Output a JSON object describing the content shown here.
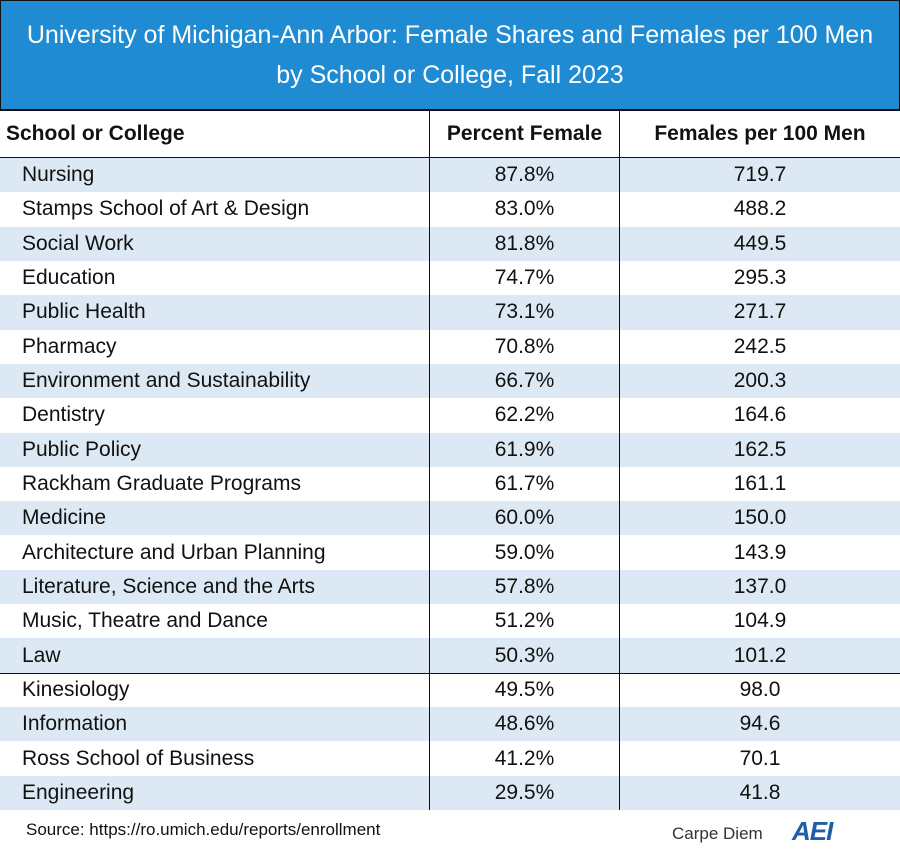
{
  "header": {
    "title": [
      "University of Michigan-Ann Arbor: Female Shares and Females per 100 Men",
      "by School or College, Fall 2023"
    ]
  },
  "table": {
    "columns": [
      "School or College",
      "Percent Female",
      "Females per 100 Men"
    ],
    "rows": [
      [
        "Nursing",
        "87.8%",
        "719.7"
      ],
      [
        "Stamps School of Art & Design",
        "83.0%",
        "488.2"
      ],
      [
        "Social Work",
        "81.8%",
        "449.5"
      ],
      [
        "Education",
        "74.7%",
        "295.3"
      ],
      [
        "Public Health",
        "73.1%",
        "271.7"
      ],
      [
        "Pharmacy",
        "70.8%",
        "242.5"
      ],
      [
        "Environment and Sustainability",
        "66.7%",
        "200.3"
      ],
      [
        "Dentistry",
        "62.2%",
        "164.6"
      ],
      [
        "Public Policy",
        "61.9%",
        "162.5"
      ],
      [
        "Rackham Graduate Programs",
        "61.7%",
        "161.1"
      ],
      [
        "Medicine",
        "60.0%",
        "150.0"
      ],
      [
        "Architecture and Urban Planning",
        "59.0%",
        "143.9"
      ],
      [
        "Literature, Science and the Arts",
        "57.8%",
        "137.0"
      ],
      [
        "Music, Theatre and Dance",
        "51.2%",
        "104.9"
      ],
      [
        "Law",
        "50.3%",
        "101.2"
      ],
      [
        "Kinesiology",
        "49.5%",
        "98.0"
      ],
      [
        "Information",
        "48.6%",
        "94.6"
      ],
      [
        "Ross School of Business",
        "41.2%",
        "70.1"
      ],
      [
        "Engineering",
        "29.5%",
        "41.8"
      ]
    ]
  },
  "footer": {
    "source": "Source: https://ro.umich.edu/reports/enrollment",
    "brand": "Carpe Diem",
    "logo": "AEI"
  }
}
